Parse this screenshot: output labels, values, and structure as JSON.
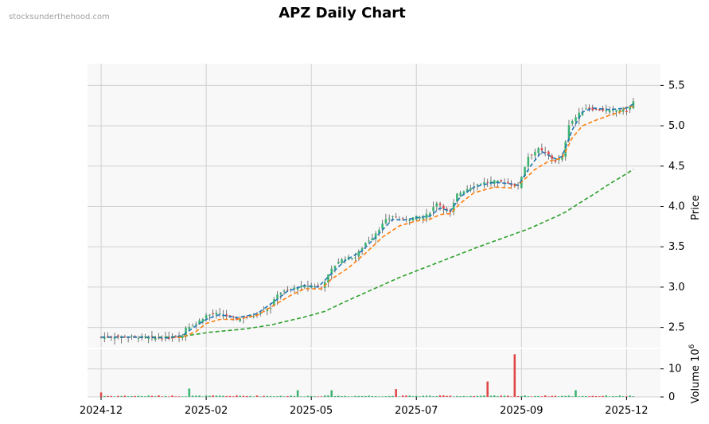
{
  "watermark": "stocksunderthehood.com",
  "chart_data": {
    "type": "candlestick",
    "title": "APZ Daily Chart",
    "price_axis": {
      "label": "Price",
      "ticks": [
        2.5,
        3.0,
        3.5,
        4.0,
        4.5,
        5.0,
        5.5
      ],
      "range": [
        2.25,
        5.77
      ]
    },
    "volume_axis": {
      "label": "Volume  10",
      "exponent": "6",
      "ticks": [
        0,
        10
      ],
      "range": [
        0,
        17
      ]
    },
    "x_axis": {
      "ticks": [
        "2024-12",
        "2025-02",
        "2025-05",
        "2025-07",
        "2025-09",
        "2025-12"
      ],
      "tick_index": [
        0,
        31,
        62,
        93,
        124,
        155
      ],
      "range": [
        -4,
        165
      ]
    },
    "grid": true,
    "colors": {
      "up": "#3cb371",
      "down": "#e04848",
      "ma_short": "#1f77b4",
      "ma_mid": "#ff7f0e",
      "ma_long": "#2ca02c",
      "plot_bg": "#f8f8f8",
      "grid": "#d0d0d0"
    },
    "price_series": [
      [
        0,
        2.38
      ],
      [
        4,
        2.38
      ],
      [
        8,
        2.39
      ],
      [
        12,
        2.38
      ],
      [
        16,
        2.37
      ],
      [
        20,
        2.37
      ],
      [
        24,
        2.4
      ],
      [
        25,
        2.5
      ],
      [
        28,
        2.55
      ],
      [
        31,
        2.65
      ],
      [
        34,
        2.67
      ],
      [
        38,
        2.63
      ],
      [
        40,
        2.6
      ],
      [
        45,
        2.65
      ],
      [
        50,
        2.75
      ],
      [
        52,
        2.92
      ],
      [
        55,
        2.96
      ],
      [
        58,
        3.0
      ],
      [
        62,
        3.02
      ],
      [
        65,
        3.0
      ],
      [
        68,
        3.22
      ],
      [
        70,
        3.32
      ],
      [
        72,
        3.36
      ],
      [
        75,
        3.37
      ],
      [
        78,
        3.55
      ],
      [
        80,
        3.62
      ],
      [
        84,
        3.83
      ],
      [
        86,
        3.88
      ],
      [
        89,
        3.83
      ],
      [
        93,
        3.87
      ],
      [
        95,
        3.86
      ],
      [
        97,
        3.93
      ],
      [
        99,
        4.05
      ],
      [
        103,
        3.92
      ],
      [
        105,
        4.15
      ],
      [
        108,
        4.22
      ],
      [
        112,
        4.29
      ],
      [
        116,
        4.31
      ],
      [
        119,
        4.3
      ],
      [
        123,
        4.25
      ],
      [
        126,
        4.62
      ],
      [
        129,
        4.71
      ],
      [
        131,
        4.66
      ],
      [
        134,
        4.56
      ],
      [
        136,
        4.6
      ],
      [
        138,
        5.02
      ],
      [
        141,
        5.15
      ],
      [
        143,
        5.22
      ],
      [
        146,
        5.2
      ],
      [
        150,
        5.18
      ],
      [
        153,
        5.2
      ],
      [
        155,
        5.18
      ],
      [
        157,
        5.3
      ]
    ],
    "ma_short": [
      [
        0,
        2.38
      ],
      [
        10,
        2.38
      ],
      [
        20,
        2.37
      ],
      [
        24,
        2.4
      ],
      [
        28,
        2.52
      ],
      [
        31,
        2.6
      ],
      [
        35,
        2.66
      ],
      [
        40,
        2.62
      ],
      [
        46,
        2.67
      ],
      [
        52,
        2.85
      ],
      [
        55,
        2.95
      ],
      [
        60,
        3.02
      ],
      [
        64,
        3.0
      ],
      [
        68,
        3.17
      ],
      [
        72,
        3.33
      ],
      [
        77,
        3.45
      ],
      [
        81,
        3.62
      ],
      [
        86,
        3.84
      ],
      [
        89,
        3.83
      ],
      [
        93,
        3.86
      ],
      [
        97,
        3.88
      ],
      [
        100,
        3.98
      ],
      [
        103,
        3.94
      ],
      [
        106,
        4.12
      ],
      [
        110,
        4.24
      ],
      [
        116,
        4.3
      ],
      [
        121,
        4.28
      ],
      [
        123,
        4.26
      ],
      [
        127,
        4.52
      ],
      [
        130,
        4.68
      ],
      [
        134,
        4.59
      ],
      [
        136,
        4.62
      ],
      [
        139,
        4.95
      ],
      [
        142,
        5.17
      ],
      [
        145,
        5.22
      ],
      [
        150,
        5.2
      ],
      [
        155,
        5.22
      ],
      [
        157,
        5.27
      ]
    ],
    "ma_mid": [
      [
        0,
        2.38
      ],
      [
        10,
        2.38
      ],
      [
        20,
        2.37
      ],
      [
        24,
        2.38
      ],
      [
        28,
        2.45
      ],
      [
        31,
        2.55
      ],
      [
        35,
        2.6
      ],
      [
        40,
        2.6
      ],
      [
        46,
        2.65
      ],
      [
        52,
        2.8
      ],
      [
        56,
        2.9
      ],
      [
        60,
        2.98
      ],
      [
        65,
        2.98
      ],
      [
        68,
        3.1
      ],
      [
        73,
        3.24
      ],
      [
        78,
        3.42
      ],
      [
        83,
        3.62
      ],
      [
        88,
        3.76
      ],
      [
        93,
        3.82
      ],
      [
        97,
        3.84
      ],
      [
        100,
        3.9
      ],
      [
        103,
        3.91
      ],
      [
        106,
        4.04
      ],
      [
        110,
        4.17
      ],
      [
        116,
        4.24
      ],
      [
        121,
        4.23
      ],
      [
        124,
        4.3
      ],
      [
        128,
        4.46
      ],
      [
        132,
        4.56
      ],
      [
        136,
        4.6
      ],
      [
        139,
        4.85
      ],
      [
        142,
        5.0
      ],
      [
        146,
        5.07
      ],
      [
        150,
        5.13
      ],
      [
        153,
        5.17
      ],
      [
        155,
        5.23
      ],
      [
        157,
        5.24
      ]
    ],
    "ma_long": [
      [
        0,
        2.38
      ],
      [
        20,
        2.38
      ],
      [
        24,
        2.39
      ],
      [
        32,
        2.44
      ],
      [
        42,
        2.48
      ],
      [
        50,
        2.53
      ],
      [
        60,
        2.63
      ],
      [
        66,
        2.7
      ],
      [
        72,
        2.82
      ],
      [
        80,
        2.97
      ],
      [
        88,
        3.12
      ],
      [
        96,
        3.25
      ],
      [
        104,
        3.38
      ],
      [
        112,
        3.51
      ],
      [
        120,
        3.63
      ],
      [
        126,
        3.72
      ],
      [
        134,
        3.87
      ],
      [
        137,
        3.93
      ],
      [
        141,
        4.04
      ],
      [
        146,
        4.17
      ],
      [
        150,
        4.28
      ],
      [
        154,
        4.38
      ],
      [
        157,
        4.46
      ]
    ],
    "volume_notes": "Daily volume mostly under 1 million; spikes near 2025-09 (~15), 2025-08 (~5.5) and around 2025-01 (~3)"
  }
}
